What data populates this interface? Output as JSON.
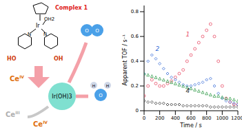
{
  "chart_data": {
    "type": "scatter",
    "x_label": "Time / s",
    "y_label": "Apparent TOF / s⁻¹",
    "xlim": [
      0,
      1200
    ],
    "xticks": [
      0,
      200,
      400,
      600,
      800,
      1000,
      1200
    ],
    "ylim": [
      0,
      0.85
    ],
    "yticks": [
      0,
      0.2,
      0.4,
      0.6,
      0.8
    ],
    "grid": false,
    "x": [
      0,
      50,
      100,
      150,
      200,
      250,
      300,
      350,
      400,
      450,
      500,
      550,
      600,
      650,
      700,
      750,
      800,
      850,
      900,
      950,
      1000,
      1050,
      1100,
      1150,
      1200
    ],
    "series": [
      {
        "color": "#e8506a",
        "marker": "circle",
        "values": [
          0.12,
          0.2,
          0.25,
          0.22,
          0.2,
          0.2,
          0.22,
          0.24,
          0.27,
          0.3,
          0.33,
          0.4,
          0.45,
          0.5,
          0.55,
          0.6,
          0.65,
          0.7,
          0.6,
          0.4,
          0.2,
          0.1,
          0.07,
          0.05,
          0.05
        ]
      },
      {
        "color": "#3a6fd8",
        "marker": "diamond",
        "values": [
          0.3,
          0.4,
          0.45,
          0.42,
          0.38,
          0.34,
          0.3,
          0.27,
          0.25,
          0.23,
          0.21,
          0.2,
          0.2,
          0.21,
          0.22,
          0.23,
          0.25,
          0.26,
          0.2,
          0.14,
          0.1,
          0.08,
          0.07,
          0.06,
          0.05
        ]
      },
      {
        "color": "#3aa050",
        "marker": "triangle",
        "values": [
          0.3,
          0.29,
          0.28,
          0.27,
          0.26,
          0.25,
          0.24,
          0.23,
          0.22,
          0.21,
          0.2,
          0.19,
          0.18,
          0.17,
          0.16,
          0.15,
          0.14,
          0.13,
          0.12,
          0.12,
          0.11,
          0.1,
          0.1,
          0.09,
          0.08
        ]
      },
      {
        "color": "#333333",
        "marker": "diamond",
        "values": [
          0.08,
          0.07,
          0.07,
          0.06,
          0.06,
          0.06,
          0.05,
          0.05,
          0.05,
          0.05,
          0.04,
          0.04,
          0.04,
          0.04,
          0.04,
          0.04,
          0.04,
          0.03,
          0.03,
          0.03,
          0.03,
          0.03,
          0.03,
          0.03,
          0.03
        ]
      }
    ],
    "annotations": [
      {
        "text": "1",
        "x": 560,
        "y": 0.62,
        "color": "#e8506a"
      },
      {
        "text": "2",
        "x": 170,
        "y": 0.5,
        "color": "#3a6fd8"
      },
      {
        "text": "4",
        "x": 560,
        "y": 0.16,
        "color": "#333333"
      }
    ]
  },
  "diagram": {
    "complex_label": "Complex 1",
    "ligand": "OH2",
    "metal": "Ir",
    "nitrogens": [
      "N",
      "N"
    ],
    "hydroxyls": [
      "HO",
      "OH"
    ],
    "oxidant_in": {
      "element": "Ce",
      "oxidation": "IV"
    },
    "reduced": {
      "element": "Ce",
      "oxidation": "III"
    },
    "oxidant_out": {
      "element": "Ce",
      "oxidation": "IV"
    },
    "intermediate": "Ir(OH)3",
    "oxygen": [
      "O",
      "O"
    ],
    "water": [
      "H",
      "H",
      "O"
    ]
  }
}
